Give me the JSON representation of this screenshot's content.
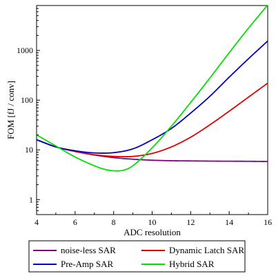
{
  "chart_data": {
    "type": "line",
    "xlabel": "ADC resolution",
    "ylabel": "FOM [fJ / conv]",
    "xlim": [
      4,
      16
    ],
    "ylim": [
      0.5,
      8000
    ],
    "yscale": "log",
    "xticks": [
      4,
      6,
      8,
      10,
      12,
      14,
      16
    ],
    "xtick_labels": [
      "4",
      "6",
      "8",
      "10",
      "12",
      "14",
      "16"
    ],
    "yticks": [
      1,
      10,
      100,
      1000
    ],
    "ytick_labels": [
      "1",
      "10",
      "100",
      "1000"
    ],
    "grid": false,
    "legend_position": "bottom",
    "series": [
      {
        "name": "noise-less SAR",
        "color": "#800080",
        "x": [
          4,
          5,
          6,
          7,
          8,
          9,
          10,
          11,
          12,
          13,
          14,
          15,
          16
        ],
        "y": [
          16,
          11.5,
          9.3,
          7.9,
          7.0,
          6.5,
          6.2,
          6.05,
          6.0,
          5.95,
          5.92,
          5.9,
          5.85
        ]
      },
      {
        "name": "Dynamic Latch SAR",
        "color": "#e00000",
        "x": [
          4,
          5,
          6,
          7,
          8,
          9,
          10,
          11,
          12,
          13,
          14,
          15,
          16
        ],
        "y": [
          16,
          11.5,
          9.3,
          8.0,
          7.4,
          7.4,
          8.5,
          11.5,
          18,
          32,
          60,
          115,
          220
        ]
      },
      {
        "name": "Pre-Amp SAR",
        "color": "#0000c0",
        "x": [
          4,
          5,
          6,
          7,
          8,
          9,
          10,
          11,
          12,
          13,
          14,
          15,
          16
        ],
        "y": [
          16,
          11.5,
          9.6,
          8.7,
          8.8,
          10.5,
          16,
          27,
          55,
          120,
          290,
          680,
          1550
        ]
      },
      {
        "name": "Hybrid SAR",
        "color": "#00e000",
        "x": [
          4,
          5,
          6,
          7,
          7.5,
          8,
          8.5,
          9,
          10,
          11,
          12,
          13,
          14,
          15,
          16
        ],
        "y": [
          20,
          12,
          7.2,
          4.8,
          4.1,
          3.8,
          3.9,
          4.8,
          11,
          30,
          90,
          280,
          900,
          2800,
          8200
        ]
      }
    ]
  }
}
